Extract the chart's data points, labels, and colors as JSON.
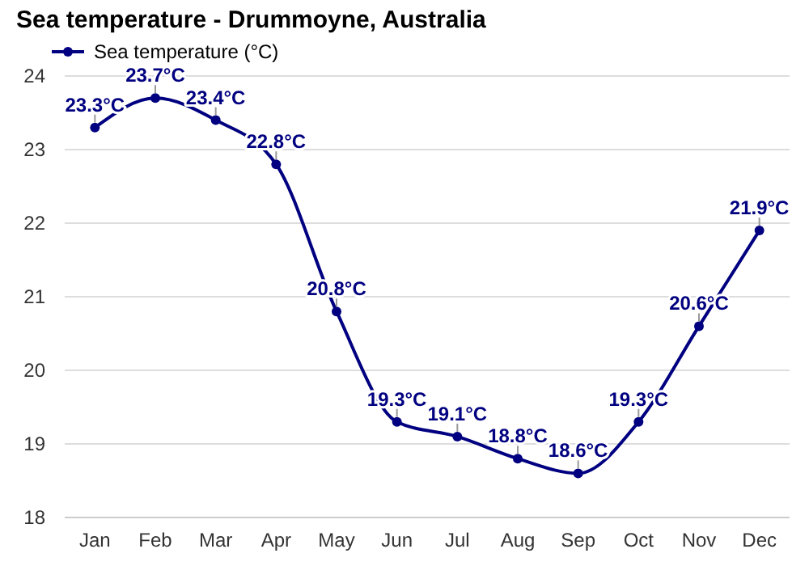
{
  "chart_data": {
    "type": "line",
    "title": "Sea temperature - Drummoyne, Australia",
    "categories": [
      "Jan",
      "Feb",
      "Mar",
      "Apr",
      "May",
      "Jun",
      "Jul",
      "Aug",
      "Sep",
      "Oct",
      "Nov",
      "Dec"
    ],
    "series": [
      {
        "name": "Sea temperature (°C)",
        "color": "#000080",
        "values": [
          23.3,
          23.7,
          23.4,
          22.8,
          20.8,
          19.3,
          19.1,
          18.8,
          18.6,
          19.3,
          20.6,
          21.9
        ],
        "value_labels": [
          "23.3°C",
          "23.7°C",
          "23.4°C",
          "22.8°C",
          "20.8°C",
          "19.3°C",
          "19.1°C",
          "18.8°C",
          "18.6°C",
          "19.3°C",
          "20.6°C",
          "21.9°C"
        ]
      }
    ],
    "ylim": [
      18,
      24
    ],
    "yticks": [
      18,
      19,
      20,
      21,
      22,
      23,
      24
    ],
    "grid": "y",
    "legend": "top left",
    "marker": "circle",
    "line_style": "solid"
  }
}
